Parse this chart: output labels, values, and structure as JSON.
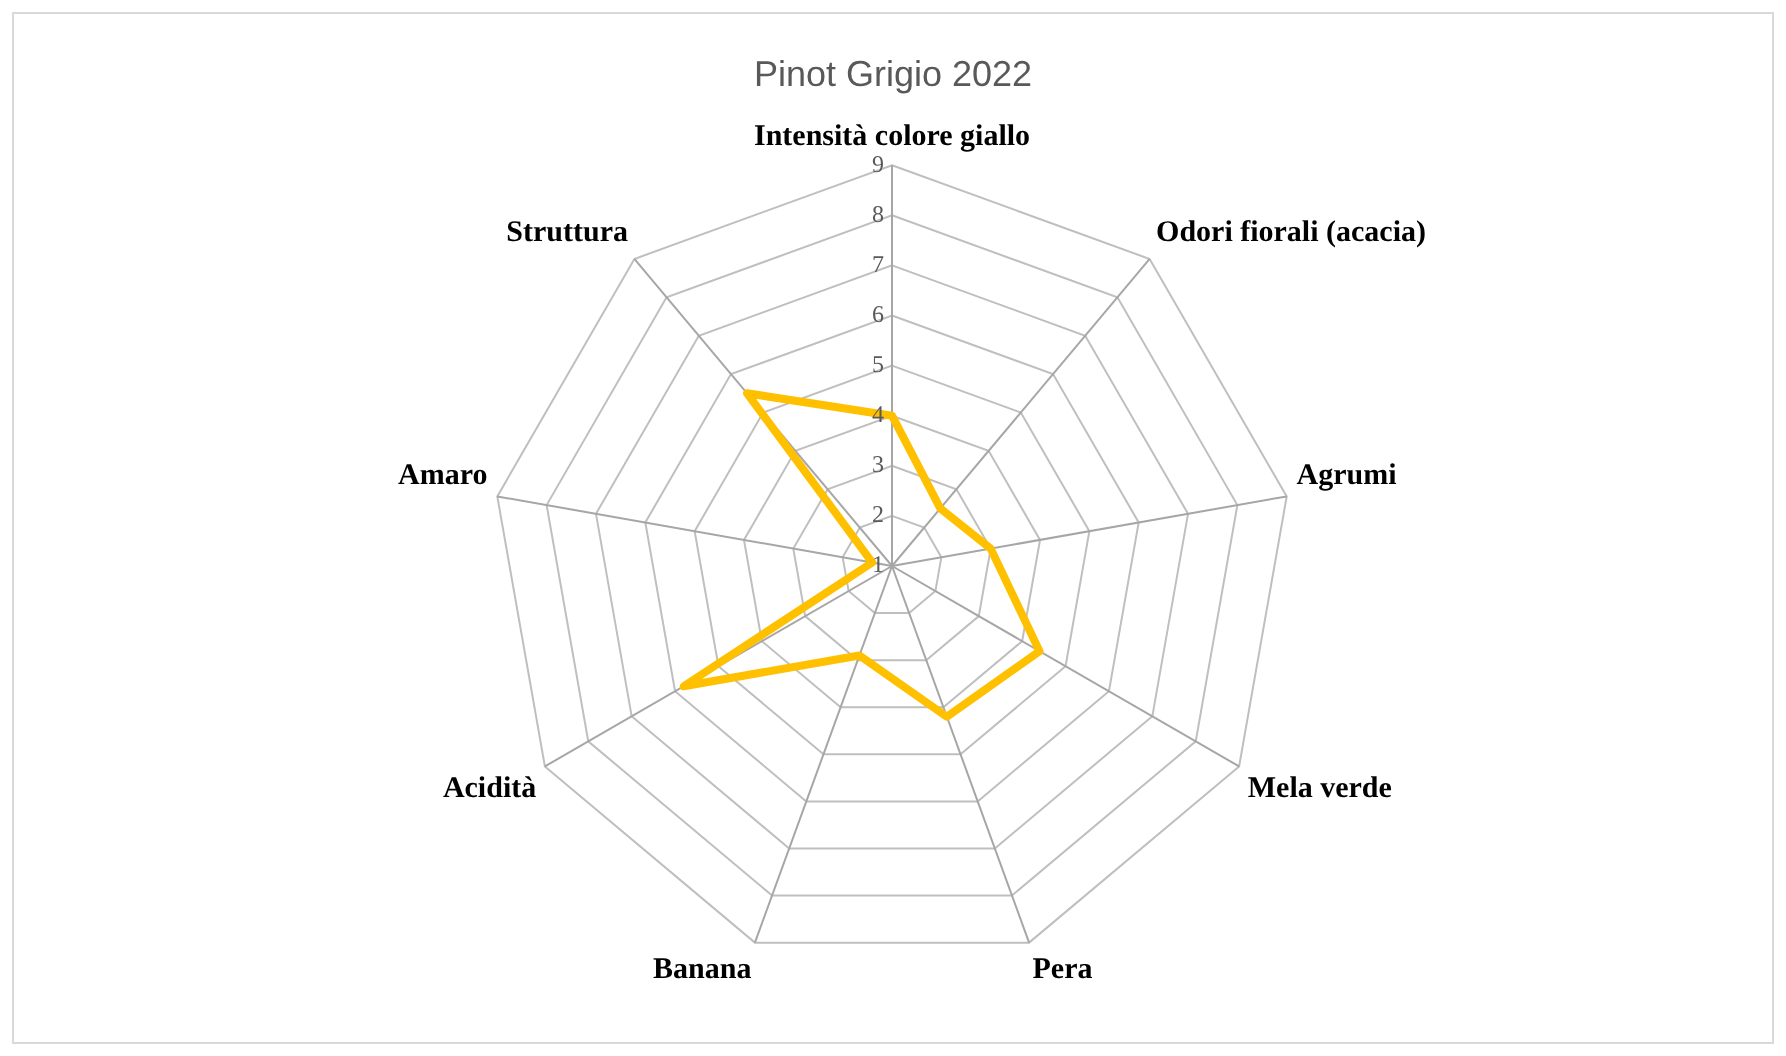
{
  "chart_data": {
    "type": "radar",
    "title": "Pinot Grigio 2022",
    "categories": [
      "Intensità colore giallo",
      "Odori fiorali (acacia)",
      "Agrumi",
      "Mela verde",
      "Pera",
      "Banana",
      "Acidità",
      "Amaro",
      "Struttura"
    ],
    "series": [
      {
        "color": "#ffc000",
        "values": [
          4,
          2.5,
          3,
          4.4,
          4.2,
          2.9,
          5.8,
          1.4,
          5.5
        ]
      }
    ],
    "ylim": [
      1,
      9
    ],
    "yticks": [
      1,
      2,
      3,
      4,
      5,
      6,
      7,
      8,
      9
    ],
    "grid": true,
    "legend": false,
    "marker": "none"
  }
}
